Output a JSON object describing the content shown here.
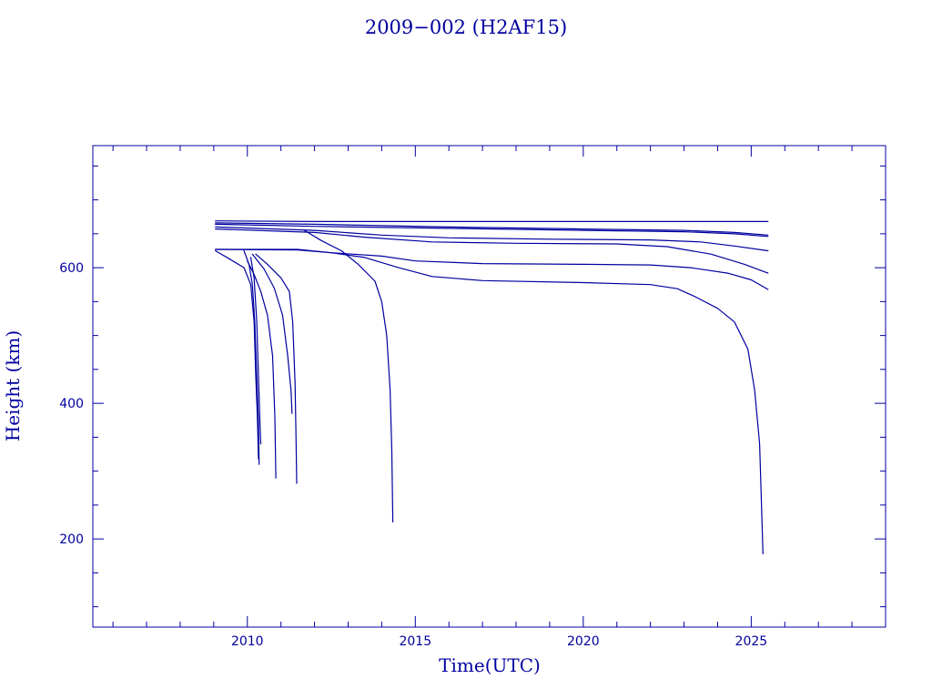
{
  "chart_data": {
    "type": "line",
    "title": "2009−002 (H2AF15)",
    "xlabel": "Time(UTC)",
    "ylabel": "Height (km)",
    "xlim": [
      2005.4,
      2029.0
    ],
    "ylim": [
      70,
      780
    ],
    "x_ticks": [
      2010,
      2015,
      2020,
      2025
    ],
    "x_tick_labels": [
      "2010",
      "2015",
      "2020",
      "2025"
    ],
    "x_minor_ticks": [
      2006,
      2007,
      2008,
      2009,
      2011,
      2012,
      2013,
      2014,
      2016,
      2017,
      2018,
      2019,
      2021,
      2022,
      2023,
      2024,
      2026,
      2027,
      2028
    ],
    "y_ticks": [
      200,
      400,
      600
    ],
    "y_tick_labels": [
      "200",
      "400",
      "600"
    ],
    "y_minor_ticks": [
      100,
      150,
      250,
      300,
      350,
      450,
      500,
      550,
      650,
      700,
      750
    ],
    "grid": false,
    "legend": "none",
    "color": "#0000a0",
    "series": [
      {
        "points": [
          [
            2009.05,
            669
          ],
          [
            2012,
            668
          ],
          [
            2018,
            668
          ],
          [
            2025.5,
            668
          ]
        ]
      },
      {
        "points": [
          [
            2009.05,
            666
          ],
          [
            2012,
            664
          ],
          [
            2016,
            660
          ],
          [
            2020,
            657
          ],
          [
            2023,
            655
          ],
          [
            2024.5,
            652
          ],
          [
            2025.5,
            648
          ]
        ]
      },
      {
        "points": [
          [
            2009.05,
            664
          ],
          [
            2012,
            661
          ],
          [
            2016,
            658
          ],
          [
            2020,
            655
          ],
          [
            2023,
            653
          ],
          [
            2024.5,
            650
          ],
          [
            2025.5,
            646
          ]
        ]
      },
      {
        "points": [
          [
            2009.05,
            660
          ],
          [
            2012,
            655
          ],
          [
            2014,
            648
          ],
          [
            2016,
            644
          ],
          [
            2019,
            642
          ],
          [
            2022,
            641
          ],
          [
            2023.5,
            638
          ],
          [
            2024.5,
            632
          ],
          [
            2025.5,
            625
          ]
        ]
      },
      {
        "points": [
          [
            2009.05,
            657
          ],
          [
            2012,
            652
          ],
          [
            2013.5,
            645
          ],
          [
            2015.5,
            638
          ],
          [
            2018,
            636
          ],
          [
            2021,
            635
          ],
          [
            2022.5,
            631
          ],
          [
            2023.8,
            620
          ],
          [
            2024.8,
            605
          ],
          [
            2025.5,
            592
          ]
        ]
      },
      {
        "points": [
          [
            2009.05,
            627
          ],
          [
            2011.5,
            626
          ],
          [
            2012.5,
            622
          ],
          [
            2014,
            617
          ],
          [
            2015,
            610
          ],
          [
            2017,
            606
          ],
          [
            2020,
            605
          ],
          [
            2022,
            604
          ],
          [
            2023.2,
            600
          ],
          [
            2024.3,
            592
          ],
          [
            2025,
            582
          ],
          [
            2025.5,
            568
          ]
        ]
      },
      {
        "points": [
          [
            2009.05,
            627
          ],
          [
            2011.5,
            627
          ],
          [
            2012.5,
            622
          ],
          [
            2013.5,
            615
          ],
          [
            2014.5,
            600
          ],
          [
            2015.5,
            587
          ],
          [
            2017,
            581
          ],
          [
            2020,
            578
          ],
          [
            2022,
            575
          ],
          [
            2022.8,
            569
          ],
          [
            2023.3,
            558
          ],
          [
            2024,
            540
          ],
          [
            2024.5,
            520
          ],
          [
            2024.9,
            480
          ],
          [
            2025.1,
            420
          ],
          [
            2025.25,
            340
          ],
          [
            2025.35,
            178
          ]
        ]
      },
      {
        "points": [
          [
            2011.7,
            655
          ],
          [
            2012.2,
            640
          ],
          [
            2012.8,
            625
          ],
          [
            2013.3,
            605
          ],
          [
            2013.8,
            580
          ],
          [
            2014.0,
            550
          ],
          [
            2014.15,
            500
          ],
          [
            2014.25,
            420
          ],
          [
            2014.3,
            330
          ],
          [
            2014.33,
            225
          ]
        ]
      },
      {
        "points": [
          [
            2009.05,
            625
          ],
          [
            2009.5,
            612
          ],
          [
            2009.9,
            600
          ],
          [
            2010.1,
            575
          ],
          [
            2010.2,
            520
          ],
          [
            2010.25,
            440
          ],
          [
            2010.3,
            380
          ],
          [
            2010.33,
            318
          ]
        ]
      },
      {
        "points": [
          [
            2009.9,
            625
          ],
          [
            2010.05,
            605
          ],
          [
            2010.15,
            575
          ],
          [
            2010.22,
            520
          ],
          [
            2010.28,
            440
          ],
          [
            2010.33,
            370
          ],
          [
            2010.35,
            310
          ]
        ]
      },
      {
        "points": [
          [
            2010.1,
            615
          ],
          [
            2010.2,
            585
          ],
          [
            2010.28,
            520
          ],
          [
            2010.33,
            440
          ],
          [
            2010.37,
            380
          ],
          [
            2010.4,
            340
          ]
        ]
      },
      {
        "points": [
          [
            2010.0,
            610
          ],
          [
            2010.2,
            590
          ],
          [
            2010.4,
            565
          ],
          [
            2010.6,
            530
          ],
          [
            2010.75,
            470
          ],
          [
            2010.82,
            380
          ],
          [
            2010.85,
            290
          ]
        ]
      },
      {
        "points": [
          [
            2010.15,
            620
          ],
          [
            2010.5,
            598
          ],
          [
            2010.8,
            570
          ],
          [
            2011.05,
            530
          ],
          [
            2011.2,
            470
          ],
          [
            2011.3,
            420
          ],
          [
            2011.33,
            385
          ]
        ]
      },
      {
        "points": [
          [
            2010.25,
            620
          ],
          [
            2010.6,
            605
          ],
          [
            2011.0,
            585
          ],
          [
            2011.25,
            565
          ],
          [
            2011.35,
            520
          ],
          [
            2011.42,
            430
          ],
          [
            2011.45,
            345
          ],
          [
            2011.47,
            282
          ]
        ]
      }
    ]
  }
}
